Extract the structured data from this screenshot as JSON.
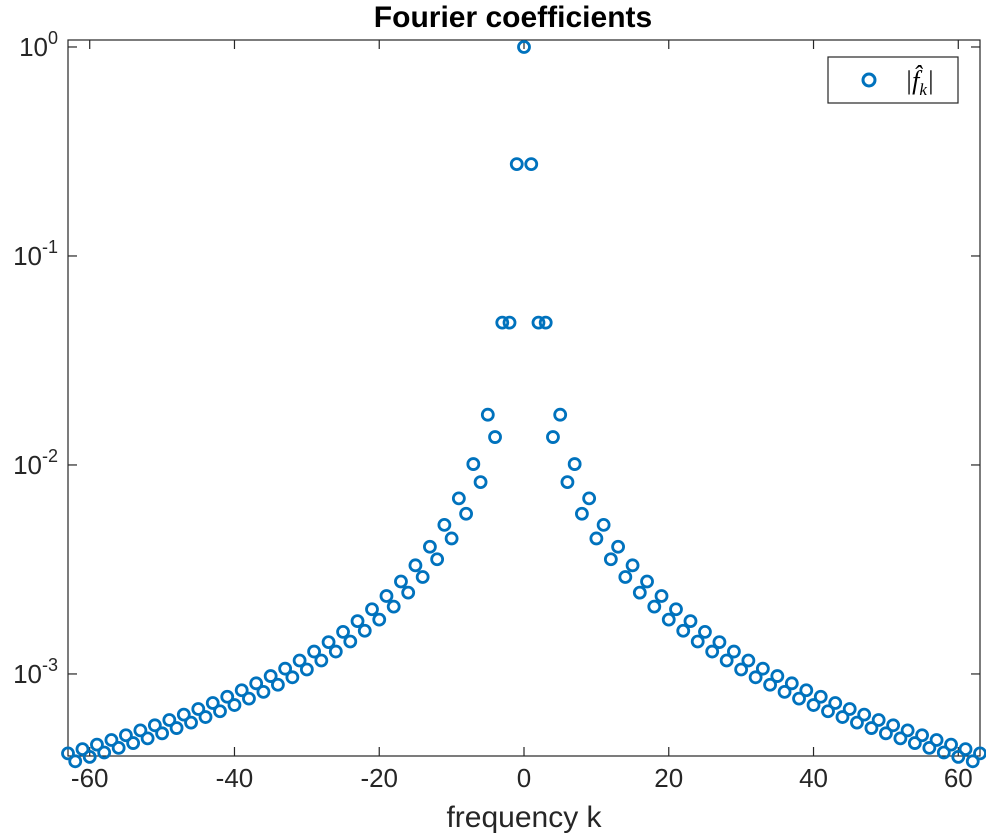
{
  "chart_data": {
    "type": "scatter",
    "title": "Fourier coefficients",
    "xlabel": "frequency k",
    "ylabel": "",
    "xlim": [
      -63,
      63
    ],
    "ylim": [
      0.000405,
      1.08
    ],
    "yscale": "log",
    "xticks": [
      -60,
      -40,
      -20,
      0,
      20,
      40,
      60
    ],
    "xtick_labels": [
      "-60",
      "-40",
      "-20",
      "0",
      "20",
      "40",
      "60"
    ],
    "yticks": [
      0.001,
      0.01,
      0.1,
      1
    ],
    "ytick_labels": [
      {
        "base": "10",
        "exp": "-3"
      },
      {
        "base": "10",
        "exp": "-2"
      },
      {
        "base": "10",
        "exp": "-1"
      },
      {
        "base": "10",
        "exp": "0"
      }
    ],
    "marker": "circle-open",
    "marker_color": "#0072BD",
    "legend": {
      "location": "top-right",
      "entries": [
        "|f̂_k|"
      ],
      "entry_text": {
        "base": "|f̂",
        "sub": "k",
        "close": "|"
      }
    },
    "series": [
      {
        "name": "|f̂_k|",
        "x": [
          -63,
          -62,
          -61,
          -60,
          -59,
          -58,
          -57,
          -56,
          -55,
          -54,
          -53,
          -52,
          -51,
          -50,
          -49,
          -48,
          -47,
          -46,
          -45,
          -44,
          -43,
          -42,
          -41,
          -40,
          -39,
          -38,
          -37,
          -36,
          -35,
          -34,
          -33,
          -32,
          -31,
          -30,
          -29,
          -28,
          -27,
          -26,
          -25,
          -24,
          -23,
          -22,
          -21,
          -20,
          -19,
          -18,
          -17,
          -16,
          -15,
          -14,
          -13,
          -12,
          -11,
          -10,
          -9,
          -8,
          -7,
          -6,
          -5,
          -4,
          -3,
          -2,
          -1,
          0,
          1,
          2,
          3,
          4,
          5,
          6,
          7,
          8,
          9,
          10,
          11,
          12,
          13,
          14,
          15,
          16,
          17,
          18,
          19,
          20,
          21,
          22,
          23,
          24,
          25,
          26,
          27,
          28,
          29,
          30,
          31,
          32,
          33,
          34,
          35,
          36,
          37,
          38,
          39,
          40,
          41,
          42,
          43,
          44,
          45,
          46,
          47,
          48,
          49,
          50,
          51,
          52,
          53,
          54,
          55,
          56,
          57,
          58,
          59,
          60,
          61,
          62,
          63
        ],
        "y": [
          0.000417,
          0.000382,
          0.000437,
          0.000401,
          0.000459,
          0.000421,
          0.000483,
          0.000443,
          0.000509,
          0.000467,
          0.000537,
          0.000492,
          0.000568,
          0.00052,
          0.000602,
          0.000551,
          0.000639,
          0.000585,
          0.00068,
          0.000622,
          0.000726,
          0.000663,
          0.000778,
          0.00071,
          0.000836,
          0.000762,
          0.000902,
          0.000821,
          0.000977,
          0.000888,
          0.00106,
          0.000964,
          0.00116,
          0.00105,
          0.00128,
          0.00116,
          0.00142,
          0.00128,
          0.00159,
          0.00143,
          0.00179,
          0.00161,
          0.00204,
          0.00182,
          0.00236,
          0.0021,
          0.00277,
          0.00245,
          0.00331,
          0.00291,
          0.00406,
          0.00354,
          0.00517,
          0.00445,
          0.00692,
          0.00584,
          0.0101,
          0.00828,
          0.0174,
          0.0136,
          0.048,
          0.048,
          0.275,
          1.0,
          0.275,
          0.048,
          0.048,
          0.0136,
          0.0174,
          0.00828,
          0.0101,
          0.00584,
          0.00692,
          0.00445,
          0.00517,
          0.00354,
          0.00406,
          0.00291,
          0.00331,
          0.00245,
          0.00277,
          0.0021,
          0.00236,
          0.00182,
          0.00204,
          0.00161,
          0.00179,
          0.00143,
          0.00159,
          0.00128,
          0.00142,
          0.00116,
          0.00128,
          0.00105,
          0.00116,
          0.000964,
          0.00106,
          0.000888,
          0.000977,
          0.000821,
          0.000902,
          0.000762,
          0.000836,
          0.00071,
          0.000778,
          0.000663,
          0.000726,
          0.000622,
          0.00068,
          0.000585,
          0.000639,
          0.000551,
          0.000602,
          0.00052,
          0.000568,
          0.000492,
          0.000537,
          0.000467,
          0.000509,
          0.000443,
          0.000483,
          0.000421,
          0.000459,
          0.000401,
          0.000437,
          0.000382,
          0.000417
        ]
      }
    ]
  }
}
